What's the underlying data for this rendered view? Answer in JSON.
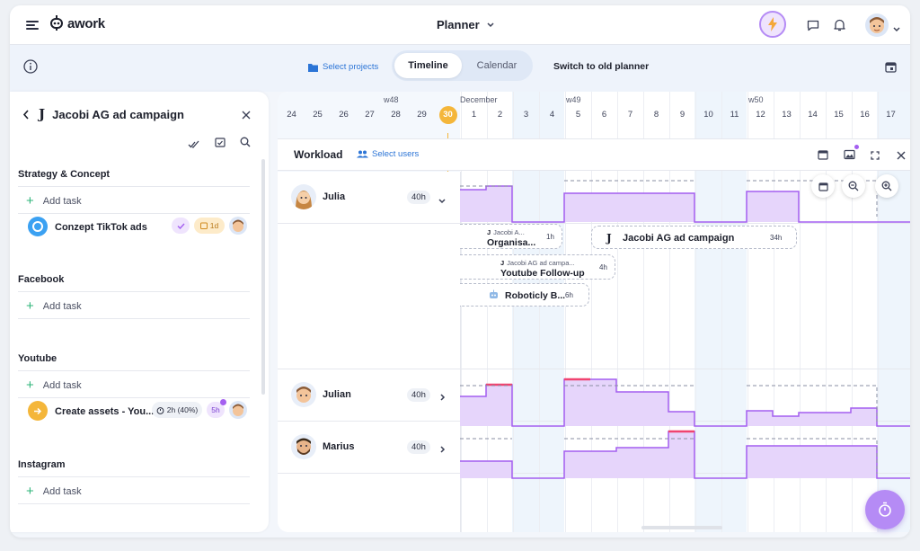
{
  "header": {
    "brand": "awork",
    "title": "Planner",
    "menu_icon": "hamburger-icon",
    "lightning_icon": "lightning-icon",
    "chat_icon": "chat-icon",
    "bell_icon": "bell-icon",
    "accent_color": "#b58bf5"
  },
  "subbar": {
    "select_projects": "Select projects",
    "tab_timeline": "Timeline",
    "tab_calendar": "Calendar",
    "switch_label": "Switch to old planner"
  },
  "project_panel": {
    "title": "Jacobi AG ad campaign",
    "sections": [
      {
        "title": "Strategy & Concept",
        "add_task": "Add task",
        "task": {
          "name": "Conzept TikTok ads",
          "duration": "1d"
        }
      },
      {
        "title": "Facebook",
        "add_task": "Add task"
      },
      {
        "title": "Youtube",
        "add_task": "Add task",
        "task": {
          "name": "Create assets - You...",
          "time": "2h (40%)",
          "hours": "5h"
        }
      },
      {
        "title": "Instagram",
        "add_task": "Add task"
      }
    ]
  },
  "timeline": {
    "weeks": [
      {
        "label": "w48"
      },
      {
        "label": "December"
      },
      {
        "label": "w49"
      },
      {
        "label": "w50"
      }
    ],
    "days": [
      "24",
      "25",
      "26",
      "27",
      "28",
      "29",
      "30",
      "1",
      "2",
      "3",
      "4",
      "5",
      "6",
      "7",
      "8",
      "9",
      "10",
      "11",
      "12",
      "13",
      "14",
      "15",
      "16",
      "17"
    ],
    "today": "30",
    "today_color": "#f4b63a"
  },
  "workload": {
    "title": "Workload",
    "select_users": "Select users",
    "users": [
      {
        "name": "Julia",
        "hours": "40h"
      },
      {
        "name": "Julian",
        "hours": "40h"
      },
      {
        "name": "Marius",
        "hours": "40h"
      }
    ],
    "tasks": [
      {
        "project": "Jacobi A...",
        "name": "Organisa...",
        "hours": "1h"
      },
      {
        "project": "",
        "name": "Jacobi AG ad campaign",
        "hours": "34h"
      },
      {
        "project": "Jacobi AG ad campa...",
        "name": "Youtube Follow-up",
        "hours": "4h"
      },
      {
        "project": "",
        "name": "Roboticly B...",
        "hours": "6h"
      }
    ],
    "fill_color": "#e6d5fb",
    "line_color": "#a45ff0",
    "over_color": "#f04470"
  }
}
